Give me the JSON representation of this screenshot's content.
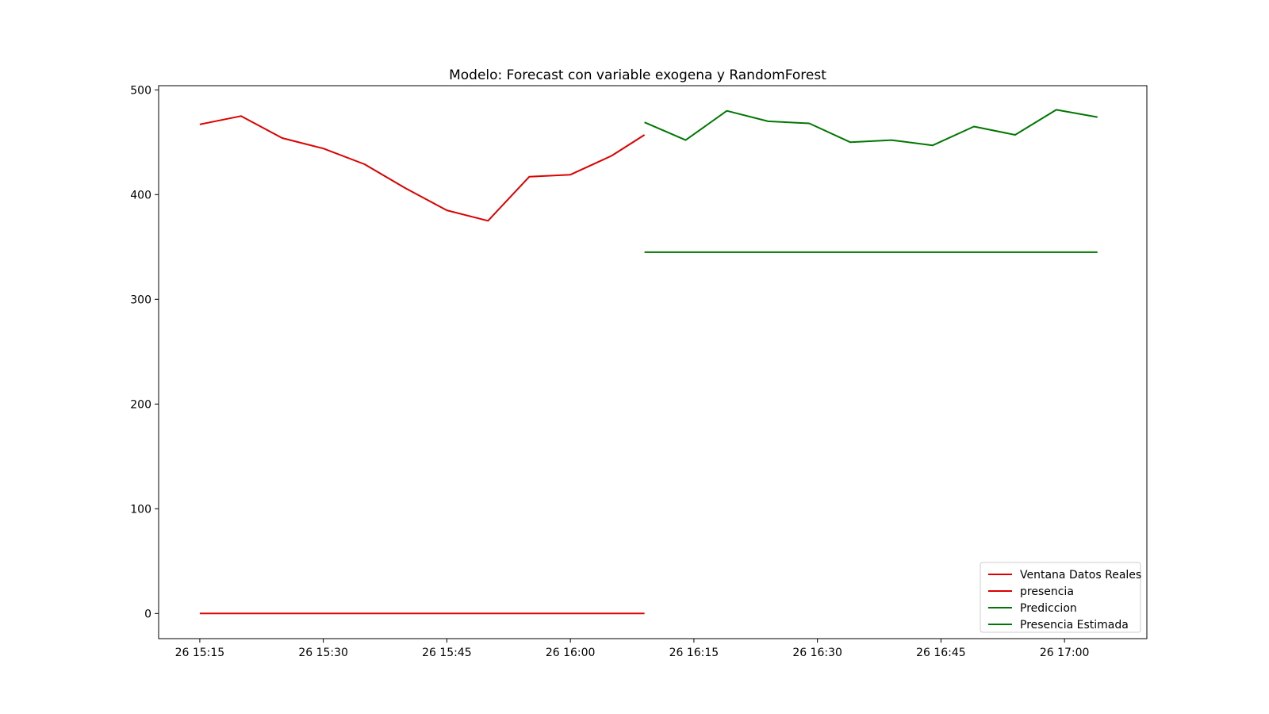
{
  "chart_data": {
    "type": "line",
    "title": "Modelo: Forecast con variable exogena y RandomForest",
    "xlabel": "",
    "ylabel": "",
    "x_ticks": [
      "26 15:15",
      "26 15:30",
      "26 15:45",
      "26 16:00",
      "26 16:15",
      "26 16:30",
      "26 16:45",
      "26 17:00"
    ],
    "y_ticks": [
      0,
      100,
      200,
      300,
      400,
      500
    ],
    "xlim": [
      "26 15:10",
      "26 17:10"
    ],
    "ylim": [
      -24,
      504
    ],
    "grid": false,
    "legend_position": "bottom-right",
    "series": [
      {
        "name": "Ventana Datos Reales",
        "color": "#dd0000",
        "x": [
          "26 15:15",
          "26 15:20",
          "26 15:25",
          "26 15:30",
          "26 15:35",
          "26 15:40",
          "26 15:45",
          "26 15:50",
          "26 15:55",
          "26 16:00",
          "26 16:05",
          "26 16:09"
        ],
        "values": [
          467,
          475,
          454,
          444,
          429,
          406,
          385,
          375,
          417,
          419,
          437,
          457
        ]
      },
      {
        "name": "presencia",
        "color": "#dd0000",
        "x": [
          "26 15:15",
          "26 16:09"
        ],
        "values": [
          0,
          0
        ]
      },
      {
        "name": "Prediccion",
        "color": "#007700",
        "x": [
          "26 16:09",
          "26 16:14",
          "26 16:19",
          "26 16:24",
          "26 16:29",
          "26 16:34",
          "26 16:39",
          "26 16:44",
          "26 16:49",
          "26 16:54",
          "26 16:59",
          "26 17:04"
        ],
        "values": [
          469,
          452,
          480,
          470,
          468,
          450,
          452,
          447,
          465,
          457,
          481,
          474
        ]
      },
      {
        "name": "Presencia Estimada",
        "color": "#007700",
        "x": [
          "26 16:09",
          "26 17:04"
        ],
        "values": [
          345,
          345
        ]
      }
    ]
  }
}
